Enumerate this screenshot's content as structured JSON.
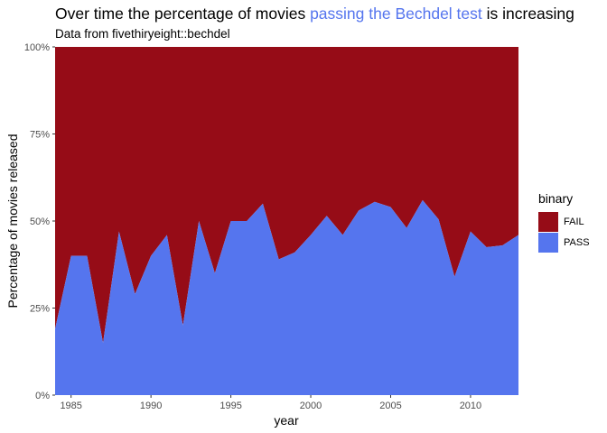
{
  "title": {
    "before": "Over time the percentage of movies ",
    "highlight": "passing the Bechdel test",
    "after": " is increasing"
  },
  "subtitle": "Data from fivethiryeight::bechdel",
  "colors": {
    "fail": "#960c17",
    "pass": "#5575ee",
    "title_highlight": "#5575ee"
  },
  "chart_data": {
    "type": "area",
    "stacked": true,
    "normalized": true,
    "title": "Over time the percentage of movies passing the Bechdel test is increasing",
    "subtitle": "Data from fivethiryeight::bechdel",
    "xlabel": "year",
    "ylabel": "Percentage of movies released",
    "xlim": [
      1984,
      2013
    ],
    "ylim": [
      0,
      100
    ],
    "x_ticks": [
      1985,
      1990,
      1995,
      2000,
      2005,
      2010
    ],
    "y_ticks": [
      {
        "value": 0,
        "label": "0%"
      },
      {
        "value": 25,
        "label": "25%"
      },
      {
        "value": 50,
        "label": "50%"
      },
      {
        "value": 75,
        "label": "75%"
      },
      {
        "value": 100,
        "label": "100%"
      }
    ],
    "legend": {
      "title": "binary",
      "position": "right",
      "entries": [
        "FAIL",
        "PASS"
      ]
    },
    "grid": false,
    "x": [
      1984,
      1985,
      1986,
      1987,
      1988,
      1989,
      1990,
      1991,
      1992,
      1993,
      1994,
      1995,
      1996,
      1997,
      1998,
      1999,
      2000,
      2001,
      2002,
      2003,
      2004,
      2005,
      2006,
      2007,
      2008,
      2009,
      2010,
      2011,
      2012,
      2013
    ],
    "series": [
      {
        "name": "PASS",
        "values": [
          19,
          40,
          40,
          15,
          47,
          29,
          40,
          46,
          20,
          50,
          35,
          50,
          50,
          55,
          39,
          41,
          46,
          51.5,
          46,
          53,
          55.5,
          54,
          48,
          56,
          50.5,
          34,
          47,
          42.5,
          43,
          46
        ]
      },
      {
        "name": "FAIL",
        "values": [
          81,
          60,
          60,
          85,
          53,
          71,
          60,
          54,
          80,
          50,
          65,
          50,
          50,
          45,
          61,
          59,
          54,
          48.5,
          54,
          47,
          44.5,
          46,
          52,
          44,
          49.5,
          66,
          53,
          57.5,
          57,
          54
        ]
      }
    ]
  }
}
